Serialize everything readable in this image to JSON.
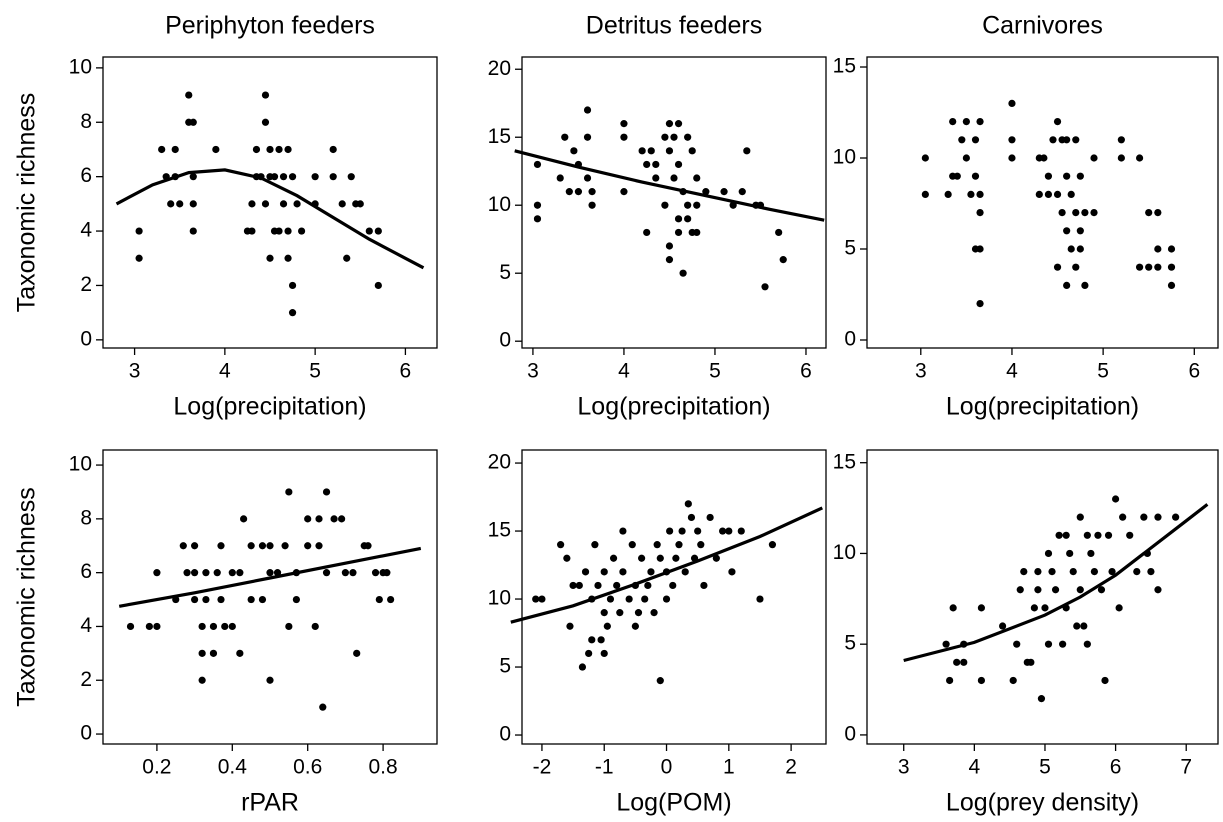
{
  "chart_data": [
    {
      "type": "scatter",
      "title": "Periphyton feeders",
      "ylabel": "Taxonomic richness",
      "xlabel": "Log(precipitation)",
      "xlim": [
        2.65,
        6.35
      ],
      "ylim": [
        -0.3,
        10.4
      ],
      "xticks": [
        3,
        4,
        5,
        6
      ],
      "yticks": [
        0,
        2,
        4,
        6,
        8,
        10
      ],
      "color": "#000000",
      "x": [
        3.05,
        3.05,
        3.3,
        3.35,
        3.4,
        3.45,
        3.5,
        3.45,
        3.6,
        3.6,
        3.65,
        3.65,
        3.65,
        3.65,
        3.9,
        4.25,
        4.3,
        4.3,
        4.35,
        4.35,
        4.45,
        4.45,
        4.5,
        4.5,
        4.45,
        4.5,
        4.55,
        4.6,
        4.6,
        4.65,
        4.65,
        4.7,
        4.7,
        4.7,
        4.75,
        4.75,
        4.75,
        4.8,
        4.85,
        5.0,
        5.0,
        5.2,
        5.2,
        5.3,
        5.35,
        5.4,
        5.45,
        5.5,
        5.6,
        5.7,
        5.7,
        4.4,
        4.55
      ],
      "values": [
        4,
        3,
        7,
        6,
        5,
        7,
        5,
        6,
        9,
        8,
        8,
        4,
        5,
        6,
        7,
        4,
        4,
        5,
        6,
        7,
        9,
        8,
        7,
        6,
        5,
        3,
        6,
        7,
        4,
        6,
        5,
        7,
        4,
        3,
        2,
        1,
        6,
        5,
        4,
        5,
        6,
        7,
        6,
        5,
        3,
        6,
        5,
        5,
        4,
        2,
        4,
        6,
        4
      ],
      "fit_x": [
        2.8,
        3.2,
        3.6,
        4.0,
        4.4,
        4.8,
        5.2,
        5.6,
        6.0,
        6.2
      ],
      "fit_values": [
        5.0,
        5.7,
        6.15,
        6.25,
        5.95,
        5.3,
        4.5,
        3.7,
        3.0,
        2.65
      ]
    },
    {
      "type": "scatter",
      "title": "Detritus feeders",
      "xlabel": "Log(precipitation)",
      "xlim": [
        2.88,
        6.22
      ],
      "ylim": [
        -0.5,
        20.9
      ],
      "xticks": [
        3,
        4,
        5,
        6
      ],
      "yticks": [
        0,
        5,
        10,
        15,
        20
      ],
      "color": "#000000",
      "x": [
        3.05,
        3.05,
        3.05,
        3.3,
        3.35,
        3.4,
        3.45,
        3.5,
        3.5,
        3.6,
        3.6,
        3.6,
        3.65,
        3.65,
        4.0,
        4.0,
        4.0,
        4.2,
        4.25,
        4.25,
        4.3,
        4.35,
        4.35,
        4.45,
        4.45,
        4.5,
        4.5,
        4.5,
        4.5,
        4.55,
        4.55,
        4.6,
        4.6,
        4.6,
        4.6,
        4.65,
        4.65,
        4.7,
        4.7,
        4.7,
        4.75,
        4.75,
        4.8,
        4.8,
        4.8,
        4.9,
        5.1,
        5.2,
        5.3,
        5.35,
        5.45,
        5.5,
        5.55,
        5.7,
        5.75
      ],
      "values": [
        13,
        10,
        9,
        12,
        15,
        11,
        14,
        11,
        13,
        17,
        15,
        12,
        10,
        11,
        16,
        15,
        11,
        14,
        13,
        8,
        14,
        12,
        13,
        15,
        10,
        16,
        14,
        7,
        6,
        15,
        12,
        16,
        13,
        9,
        8,
        5,
        11,
        15,
        10,
        9,
        14,
        8,
        12,
        10,
        8,
        11,
        11,
        10,
        11,
        14,
        10,
        10,
        4,
        8,
        6
      ],
      "fit_x": [
        2.8,
        3.5,
        4.2,
        4.9,
        5.6,
        6.2
      ],
      "fit_values": [
        14.0,
        12.8,
        11.7,
        10.7,
        9.7,
        8.9
      ]
    },
    {
      "type": "scatter",
      "title": "Carnivores",
      "xlabel": "Log(precipitation)",
      "xlim": [
        2.41,
        6.26
      ],
      "ylim": [
        -0.44,
        15.55
      ],
      "xticks": [
        3,
        4,
        5,
        6
      ],
      "yticks": [
        0,
        5,
        10,
        15
      ],
      "color": "#000000",
      "x": [
        3.05,
        3.05,
        3.3,
        3.35,
        3.35,
        3.4,
        3.45,
        3.5,
        3.5,
        3.55,
        3.6,
        3.6,
        3.6,
        3.65,
        3.65,
        3.65,
        3.65,
        3.65,
        4.0,
        4.0,
        4.0,
        4.3,
        4.3,
        4.35,
        4.4,
        4.4,
        4.45,
        4.5,
        4.5,
        4.5,
        4.55,
        4.55,
        4.6,
        4.6,
        4.6,
        4.6,
        4.65,
        4.65,
        4.7,
        4.7,
        4.7,
        4.75,
        4.75,
        4.75,
        4.8,
        4.8,
        4.9,
        4.9,
        5.2,
        5.2,
        5.4,
        5.4,
        5.5,
        5.5,
        5.6,
        5.6,
        5.6,
        5.75,
        5.75,
        5.75
      ],
      "values": [
        10,
        8,
        8,
        12,
        9,
        9,
        11,
        10,
        12,
        8,
        9,
        11,
        5,
        12,
        8,
        7,
        5,
        2,
        13,
        11,
        10,
        10,
        8,
        10,
        8,
        9,
        11,
        12,
        8,
        4,
        11,
        7,
        11,
        9,
        6,
        3,
        8,
        5,
        11,
        7,
        4,
        9,
        6,
        5,
        7,
        3,
        10,
        7,
        11,
        10,
        10,
        4,
        7,
        4,
        5,
        4,
        7,
        5,
        4,
        3
      ]
    },
    {
      "type": "scatter",
      "ylabel": "Taxonomic richness",
      "xlabel": "rPAR",
      "xlim": [
        0.057,
        0.943
      ],
      "ylim": [
        -0.37,
        10.56
      ],
      "xticks": [
        0.2,
        0.4,
        0.6,
        0.8
      ],
      "yticks": [
        0,
        2,
        4,
        6,
        8,
        10
      ],
      "color": "#000000",
      "x": [
        0.13,
        0.18,
        0.2,
        0.2,
        0.25,
        0.27,
        0.28,
        0.3,
        0.3,
        0.3,
        0.32,
        0.32,
        0.32,
        0.33,
        0.33,
        0.35,
        0.35,
        0.36,
        0.37,
        0.37,
        0.38,
        0.4,
        0.4,
        0.42,
        0.42,
        0.43,
        0.45,
        0.45,
        0.48,
        0.48,
        0.5,
        0.5,
        0.5,
        0.52,
        0.54,
        0.55,
        0.55,
        0.57,
        0.57,
        0.6,
        0.6,
        0.62,
        0.63,
        0.63,
        0.64,
        0.65,
        0.65,
        0.67,
        0.69,
        0.7,
        0.72,
        0.73,
        0.75,
        0.76,
        0.78,
        0.79,
        0.8,
        0.81,
        0.82
      ],
      "values": [
        4,
        4,
        6,
        4,
        5,
        7,
        6,
        7,
        6,
        5,
        4,
        3,
        2,
        6,
        5,
        4,
        3,
        6,
        7,
        5,
        4,
        6,
        4,
        3,
        6,
        8,
        7,
        5,
        7,
        5,
        7,
        6,
        2,
        6,
        7,
        9,
        4,
        6,
        5,
        8,
        7,
        4,
        7,
        8,
        1,
        9,
        6,
        8,
        8,
        6,
        6,
        3,
        7,
        7,
        6,
        5,
        6,
        6,
        5
      ],
      "fit_x": [
        0.1,
        0.3,
        0.5,
        0.7,
        0.9
      ],
      "fit_values": [
        4.75,
        5.25,
        5.8,
        6.35,
        6.9
      ]
    },
    {
      "type": "scatter",
      "xlabel": "Log(POM)",
      "xlim": [
        -2.32,
        2.56
      ],
      "ylim": [
        -0.66,
        20.96
      ],
      "xticks": [
        -2,
        -1,
        0,
        1,
        2
      ],
      "yticks": [
        0,
        5,
        10,
        15,
        20
      ],
      "color": "#000000",
      "x": [
        -2.1,
        -2.0,
        -1.7,
        -1.6,
        -1.55,
        -1.5,
        -1.4,
        -1.35,
        -1.3,
        -1.25,
        -1.2,
        -1.2,
        -1.15,
        -1.1,
        -1.05,
        -1.0,
        -1.0,
        -1.0,
        -0.95,
        -0.9,
        -0.85,
        -0.8,
        -0.75,
        -0.7,
        -0.7,
        -0.6,
        -0.55,
        -0.5,
        -0.5,
        -0.45,
        -0.4,
        -0.35,
        -0.3,
        -0.25,
        -0.2,
        -0.15,
        -0.1,
        -0.1,
        0,
        0,
        0.05,
        0.1,
        0.15,
        0.2,
        0.25,
        0.3,
        0.35,
        0.4,
        0.45,
        0.5,
        0.55,
        0.6,
        0.7,
        0.8,
        0.9,
        1.0,
        1.05,
        1.2,
        1.5,
        1.7
      ],
      "values": [
        10,
        10,
        14,
        13,
        8,
        11,
        11,
        5,
        12,
        6,
        7,
        10,
        14,
        11,
        7,
        12,
        9,
        6,
        8,
        10,
        13,
        11,
        9,
        12,
        15,
        10,
        14,
        8,
        11,
        9,
        13,
        10,
        11,
        12,
        9,
        14,
        13,
        4,
        10,
        12,
        15,
        11,
        13,
        14,
        15,
        12,
        17,
        16,
        13,
        15,
        14,
        11,
        16,
        13,
        15,
        15,
        12,
        15,
        10,
        14
      ],
      "fit_x": [
        -2.5,
        -1.5,
        -0.5,
        0.5,
        1.5,
        2.5
      ],
      "fit_values": [
        8.3,
        9.5,
        11.1,
        12.8,
        14.6,
        16.7
      ]
    },
    {
      "type": "scatter",
      "xlabel": "Log(prey density)",
      "xlim": [
        2.48,
        7.45
      ],
      "ylim": [
        -0.5,
        15.7
      ],
      "xticks": [
        3,
        4,
        5,
        6,
        7
      ],
      "yticks": [
        0,
        5,
        10,
        15
      ],
      "color": "#000000",
      "x": [
        3.6,
        3.65,
        3.7,
        3.75,
        3.85,
        3.85,
        4.1,
        4.1,
        4.4,
        4.55,
        4.6,
        4.65,
        4.7,
        4.75,
        4.8,
        4.85,
        4.9,
        4.9,
        4.95,
        5.0,
        5.05,
        5.05,
        5.1,
        5.15,
        5.2,
        5.25,
        5.3,
        5.3,
        5.35,
        5.4,
        5.45,
        5.5,
        5.5,
        5.55,
        5.6,
        5.6,
        5.65,
        5.7,
        5.75,
        5.8,
        5.85,
        5.9,
        5.95,
        6.0,
        6.05,
        6.1,
        6.2,
        6.3,
        6.4,
        6.45,
        6.5,
        6.6,
        6.6,
        6.85
      ],
      "values": [
        5,
        3,
        7,
        4,
        4,
        5,
        7,
        3,
        6,
        3,
        5,
        8,
        9,
        4,
        4,
        7,
        9,
        8,
        2,
        7,
        10,
        5,
        9,
        8,
        11,
        5,
        11,
        7,
        10,
        9,
        6,
        12,
        8,
        6,
        11,
        5,
        10,
        9,
        11,
        8,
        3,
        11,
        9,
        13,
        7,
        12,
        11,
        9,
        12,
        10,
        9,
        8,
        12,
        12
      ],
      "fit_x": [
        3.0,
        4.0,
        5.0,
        5.5,
        6.0,
        6.5,
        7.0,
        7.3
      ],
      "fit_values": [
        4.1,
        5.1,
        6.6,
        7.6,
        8.8,
        10.3,
        11.8,
        12.7
      ]
    }
  ]
}
